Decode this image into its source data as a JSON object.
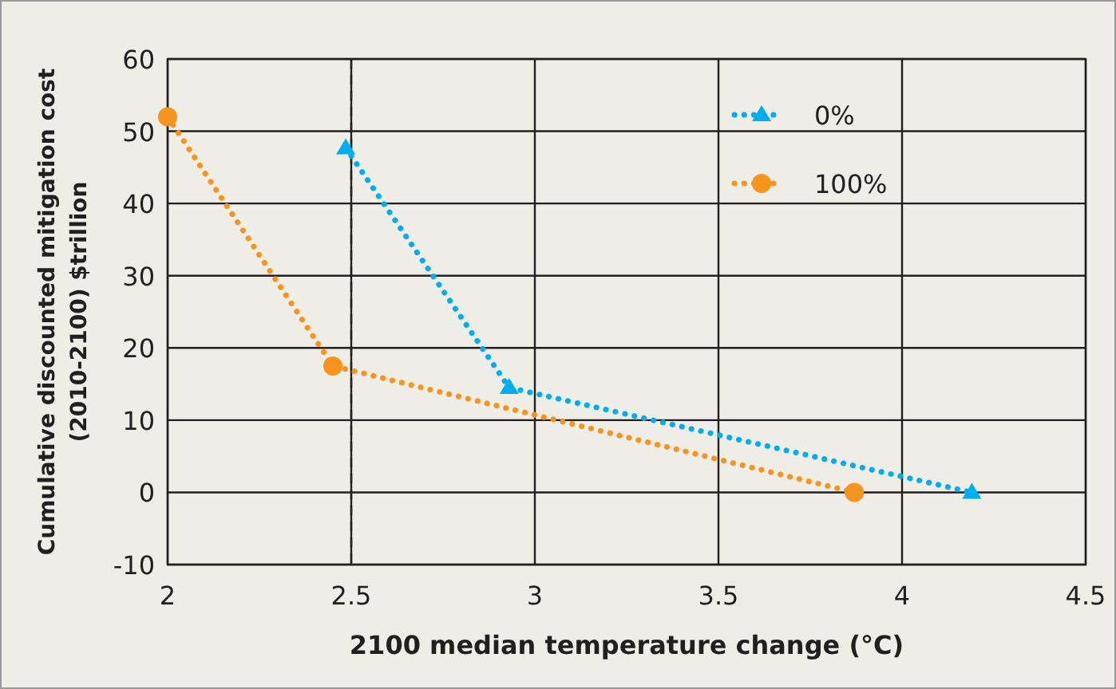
{
  "chart_data": {
    "type": "line",
    "xlabel": "2100 median temperature change (°C)",
    "ylabel": "Cumulative discounted mitigation cost\n(2010-2100) $trillion",
    "xlim": [
      2,
      4.5
    ],
    "xticks": [
      2,
      2.5,
      3,
      3.5,
      4,
      4.5
    ],
    "ylim": [
      -10,
      60
    ],
    "yticks": [
      -10,
      0,
      10,
      20,
      30,
      40,
      50,
      60
    ],
    "grid": true,
    "legend": "top right",
    "line_style": "dotted",
    "ref_lines": [
      {
        "axis": "x",
        "value": 2.5,
        "color": "#231f20",
        "line_style": "dashed"
      }
    ],
    "series": [
      {
        "name": "0%",
        "color": "#00aeef",
        "marker": "triangle",
        "x": [
          2.485,
          2.93,
          4.19
        ],
        "values": [
          47.7,
          14.5,
          0
        ]
      },
      {
        "name": "100%",
        "color": "#f7941d",
        "marker": "circle",
        "x": [
          2,
          2.45,
          3.87
        ],
        "values": [
          52,
          17.5,
          0
        ]
      }
    ]
  }
}
